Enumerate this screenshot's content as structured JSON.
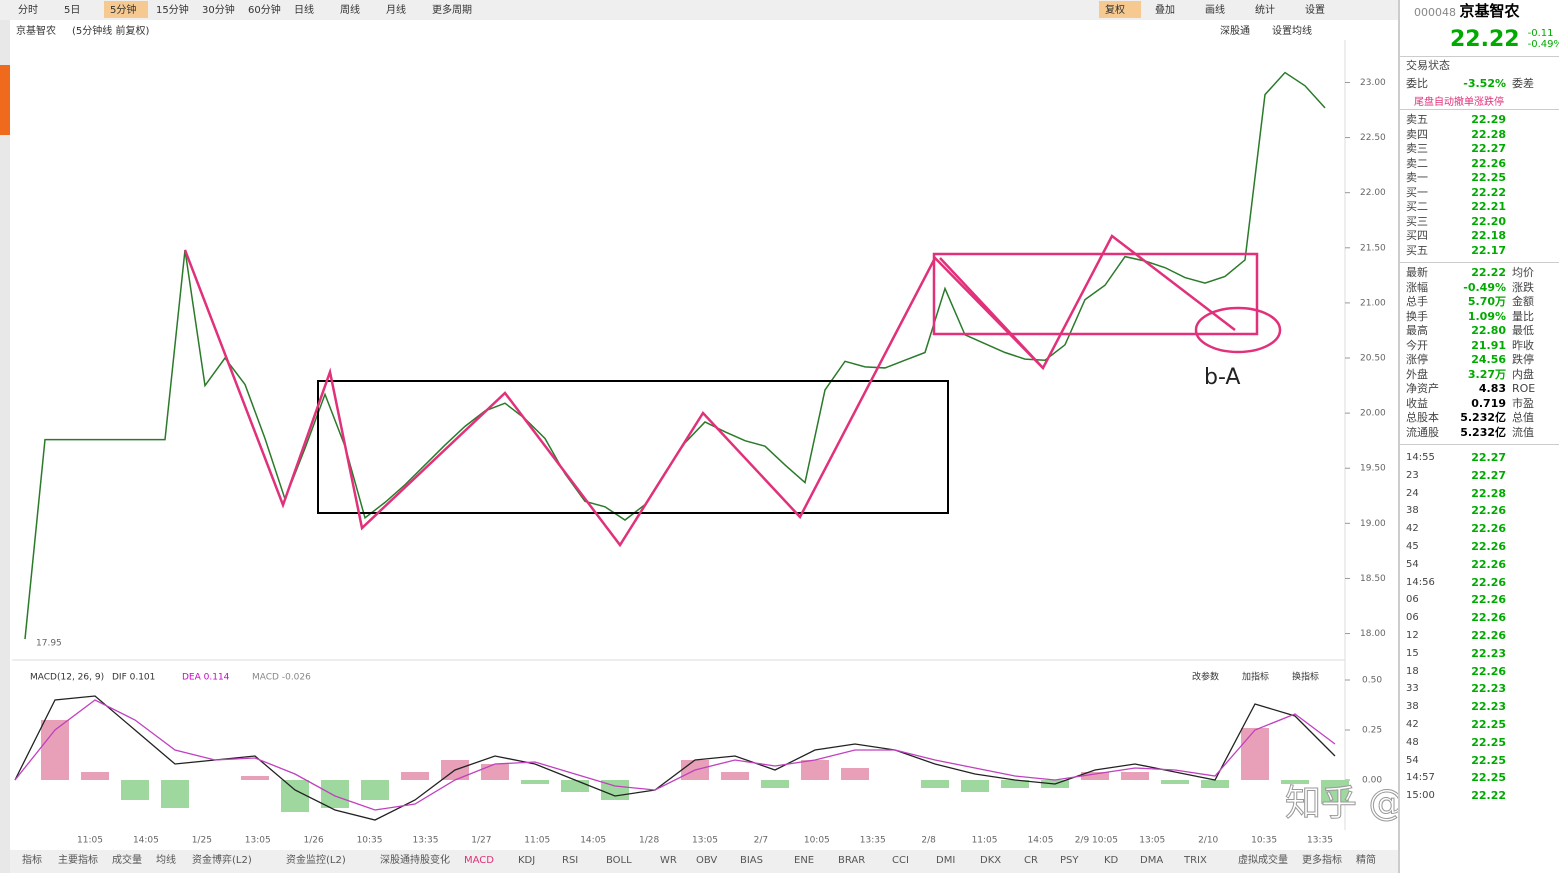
{
  "toolbar": {
    "periods": [
      "分时",
      "5日",
      "5分钟",
      "15分钟",
      "30分钟",
      "60分钟",
      "日线",
      "周线",
      "月线",
      "更多周期"
    ],
    "tools": [
      "复权",
      "叠加",
      "画线",
      "统计",
      "设置"
    ]
  },
  "price_chart": {
    "stock": "京基智农",
    "mode": "(5分钟线 前复权)",
    "links": [
      "深股通",
      "设置均线"
    ],
    "low_label": "17.95",
    "ylim": [
      17.76,
      23.34
    ],
    "yticks": [
      {
        "value": 23,
        "label": "23.00"
      },
      {
        "value": 22.5,
        "label": "22.50"
      },
      {
        "value": 22,
        "label": "22.00"
      },
      {
        "value": 21.5,
        "label": "21.50"
      },
      {
        "value": 21,
        "label": "21.00"
      },
      {
        "value": 20.5,
        "label": "20.50"
      },
      {
        "value": 20,
        "label": "20.00"
      },
      {
        "value": 19.5,
        "label": "19.50"
      },
      {
        "value": 19,
        "label": "19.00"
      },
      {
        "value": 18.5,
        "label": "18.50"
      },
      {
        "value": 18,
        "label": "18.00"
      }
    ],
    "prices": [
      17.95,
      19.76,
      19.76,
      19.76,
      19.76,
      19.76,
      19.76,
      19.76,
      21.48,
      20.25,
      20.5,
      20.26,
      19.77,
      19.22,
      19.68,
      20.17,
      19.7,
      19.05,
      19.19,
      19.35,
      19.53,
      19.71,
      19.88,
      20.02,
      20.09,
      19.95,
      19.77,
      19.45,
      19.2,
      19.15,
      19.03,
      19.17,
      19.46,
      19.73,
      19.92,
      19.83,
      19.75,
      19.7,
      19.53,
      19.37,
      20.21,
      20.47,
      20.42,
      20.41,
      20.48,
      20.55,
      21.13,
      20.71,
      20.63,
      20.55,
      20.49,
      20.48,
      20.62,
      21.03,
      21.16,
      21.42,
      21.38,
      21.32,
      21.23,
      21.18,
      21.24,
      21.39,
      22.89,
      23.09,
      22.97,
      22.77
    ],
    "annotation": "b-A",
    "x_labels": [
      "11:05",
      "14:05",
      "1/25",
      "13:05",
      "1/26",
      "10:35",
      "13:35",
      "1/27",
      "11:05",
      "14:05",
      "1/28",
      "13:05",
      "2/7",
      "10:05",
      "13:35",
      "2/8",
      "11:05",
      "14:05",
      "2/9 10:05",
      "13:05",
      "2/10",
      "10:35",
      "13:35"
    ]
  },
  "macd_panel": {
    "title": "MACD(12, 26, 9)",
    "dif_label": "DIF 0.101",
    "dea_label": "DEA 0.114",
    "macd_label": "MACD -0.026",
    "buttons": [
      "改参数",
      "加指标",
      "换指标"
    ],
    "ylim": [
      -0.25,
      0.55
    ],
    "yticks": [
      {
        "value": 0.5,
        "label": "0.50"
      },
      {
        "value": 0.25,
        "label": "0.25"
      },
      {
        "value": 0,
        "label": "0.00"
      }
    ],
    "dif": [
      0.0,
      0.4,
      0.42,
      0.25,
      0.08,
      0.1,
      0.12,
      -0.05,
      -0.15,
      -0.2,
      -0.1,
      0.05,
      0.12,
      0.08,
      0.0,
      -0.08,
      -0.05,
      0.1,
      0.12,
      0.05,
      0.15,
      0.18,
      0.15,
      0.08,
      0.03,
      0.0,
      -0.02,
      0.05,
      0.08,
      0.04,
      0.0,
      0.38,
      0.32,
      0.12
    ],
    "dea": [
      0.0,
      0.25,
      0.4,
      0.3,
      0.15,
      0.1,
      0.11,
      0.03,
      -0.08,
      -0.15,
      -0.12,
      0.0,
      0.08,
      0.09,
      0.03,
      -0.03,
      -0.05,
      0.05,
      0.1,
      0.07,
      0.1,
      0.15,
      0.15,
      0.1,
      0.06,
      0.02,
      0.0,
      0.03,
      0.06,
      0.05,
      0.02,
      0.25,
      0.33,
      0.18
    ],
    "macd": [
      0,
      0.3,
      0.04,
      -0.1,
      -0.14,
      0,
      0.02,
      -0.16,
      -0.14,
      -0.1,
      0.04,
      0.1,
      0.08,
      -0.02,
      -0.06,
      -0.1,
      0,
      0.1,
      0.04,
      -0.04,
      0.1,
      0.06,
      0,
      -0.04,
      -0.06,
      -0.04,
      -0.04,
      0.04,
      0.04,
      -0.02,
      -0.04,
      0.26,
      -0.02,
      -0.12
    ]
  },
  "indicator_tabs": [
    "指标",
    "主要指标",
    "成交量",
    "均线",
    "资金博弈(L2)",
    "资金监控(L2)",
    "深股通持股变化",
    "MACD",
    "KDJ",
    "RSI",
    "BOLL",
    "WR",
    "OBV",
    "BIAS",
    "ENE",
    "BRAR",
    "CCI",
    "DMI",
    "DKX",
    "CR",
    "PSY",
    "KD",
    "DMA",
    "TRIX",
    "虚拟成交量",
    "更多指标",
    "精简"
  ],
  "watermark": "知乎 @白以",
  "quote": {
    "code": "000048",
    "name": "京基智农",
    "price": "22.22",
    "change": "-0.11",
    "change_pct": "-0.49%",
    "status": "交易状态",
    "ratio_label": "委比",
    "ratio": "-3.52%",
    "diff_label": "委差",
    "notice": "尾盘自动撤单涨跌停",
    "order_book": [
      {
        "label": "卖五",
        "price": "22.29"
      },
      {
        "label": "卖四",
        "price": "22.28"
      },
      {
        "label": "卖三",
        "price": "22.27"
      },
      {
        "label": "卖二",
        "price": "22.26"
      },
      {
        "label": "卖一",
        "price": "22.25"
      },
      {
        "label": "买一",
        "price": "22.22"
      },
      {
        "label": "买二",
        "price": "22.21"
      },
      {
        "label": "买三",
        "price": "22.20"
      },
      {
        "label": "买四",
        "price": "22.18"
      },
      {
        "label": "买五",
        "price": "22.17"
      }
    ],
    "stats": [
      {
        "label": "最新",
        "value": "22.22",
        "label2": "均价"
      },
      {
        "label": "涨幅",
        "value": "-0.49%",
        "label2": "涨跌"
      },
      {
        "label": "总手",
        "value": "5.70万",
        "label2": "金额"
      },
      {
        "label": "换手",
        "value": "1.09%",
        "label2": "量比"
      },
      {
        "label": "最高",
        "value": "22.80",
        "label2": "最低"
      },
      {
        "label": "今开",
        "value": "21.91",
        "label2": "昨收"
      },
      {
        "label": "涨停",
        "value": "24.56",
        "label2": "跌停"
      },
      {
        "label": "外盘",
        "value": "3.27万",
        "label2": "内盘"
      },
      {
        "label": "净资产",
        "value": "4.83",
        "label2": "ROE"
      },
      {
        "label": "收益",
        "value": "0.719",
        "label2": "市盈"
      },
      {
        "label": "总股本",
        "value": "5.232亿",
        "label2": "总值"
      },
      {
        "label": "流通股",
        "value": "5.232亿",
        "label2": "流值"
      }
    ],
    "ticks": [
      {
        "time": "14:55",
        "price": "22.27"
      },
      {
        "time": "23",
        "price": "22.27"
      },
      {
        "time": "24",
        "price": "22.28"
      },
      {
        "time": "38",
        "price": "22.26"
      },
      {
        "time": "42",
        "price": "22.26"
      },
      {
        "time": "45",
        "price": "22.26"
      },
      {
        "time": "54",
        "price": "22.26"
      },
      {
        "time": "14:56",
        "price": "22.26"
      },
      {
        "time": "06",
        "price": "22.26"
      },
      {
        "time": "06",
        "price": "22.26"
      },
      {
        "time": "12",
        "price": "22.26"
      },
      {
        "time": "15",
        "price": "22.23"
      },
      {
        "time": "18",
        "price": "22.26"
      },
      {
        "time": "33",
        "price": "22.23"
      },
      {
        "time": "38",
        "price": "22.23"
      },
      {
        "time": "42",
        "price": "22.25"
      },
      {
        "time": "48",
        "price": "22.25"
      },
      {
        "time": "54",
        "price": "22.25"
      },
      {
        "time": "14:57",
        "price": "22.25"
      },
      {
        "time": "15:00",
        "price": "22.22"
      }
    ]
  }
}
